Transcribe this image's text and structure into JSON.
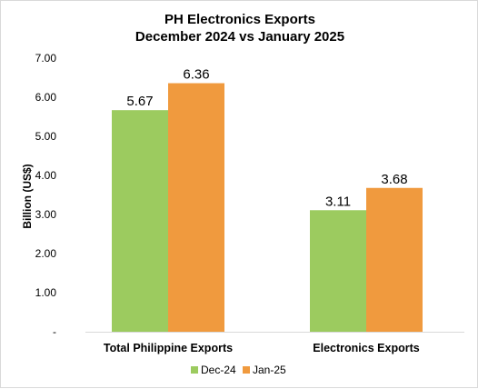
{
  "chart_data": {
    "type": "bar",
    "title": [
      "PH Electronics Exports",
      "December 2024 vs January 2025"
    ],
    "ylabel": "Billion (US$)",
    "xlabel": "",
    "categories": [
      "Total Philippine Exports",
      "Electronics Exports"
    ],
    "series": [
      {
        "name": "Dec-24",
        "values": [
          5.67,
          3.11
        ],
        "color": "#9ccb5f"
      },
      {
        "name": "Jan-25",
        "values": [
          6.36,
          3.68
        ],
        "color": "#f09a3e"
      }
    ],
    "ylim": [
      0,
      7
    ],
    "yticks": [
      0,
      1,
      2,
      3,
      4,
      5,
      6,
      7
    ],
    "ytick_labels": [
      "-",
      "1.00",
      "2.00",
      "3.00",
      "4.00",
      "5.00",
      "6.00",
      "7.00"
    ],
    "data_labels": [
      [
        "5.67",
        "3.11"
      ],
      [
        "6.36",
        "3.68"
      ]
    ],
    "grid": false,
    "legend_position": "bottom"
  }
}
